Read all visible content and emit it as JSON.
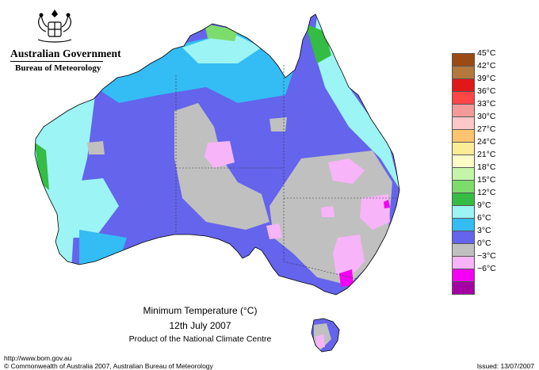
{
  "header": {
    "government": "Australian Government",
    "bureau": "Bureau of Meteorology"
  },
  "map": {
    "title": "Minimum Temperature (°C)",
    "date": "12th July 2007",
    "product": "Product of the National Climate Centre",
    "region": "Australia"
  },
  "legend": {
    "items": [
      {
        "label": "45°C",
        "color": "#9a4a12"
      },
      {
        "label": "42°C",
        "color": "#b5783c"
      },
      {
        "label": "39°C",
        "color": "#e01818"
      },
      {
        "label": "36°C",
        "color": "#ff4646"
      },
      {
        "label": "33°C",
        "color": "#f49a9a"
      },
      {
        "label": "30°C",
        "color": "#fcc8c8"
      },
      {
        "label": "27°C",
        "color": "#fcc46e"
      },
      {
        "label": "24°C",
        "color": "#fcec96"
      },
      {
        "label": "21°C",
        "color": "#fcfcc8"
      },
      {
        "label": "18°C",
        "color": "#c4f4a8"
      },
      {
        "label": "15°C",
        "color": "#7cdc6c"
      },
      {
        "label": "12°C",
        "color": "#34bc44"
      },
      {
        "label": "9°C",
        "color": "#9cf4f4"
      },
      {
        "label": "6°C",
        "color": "#34bcf4"
      },
      {
        "label": "3°C",
        "color": "#6464ec"
      },
      {
        "label": "0°C",
        "color": "#c0c0c0"
      },
      {
        "label": "−3°C",
        "color": "#f8b4f8"
      },
      {
        "label": "−6°C",
        "color": "#f400f4"
      },
      {
        "label": "",
        "color": "#a400a4"
      }
    ]
  },
  "footer": {
    "url": "http://www.bom.gov.au",
    "copyright": "© Commonwealth of Australia 2007, Australian Bureau of Meteorology",
    "issued": "Issued: 13/07/2007"
  }
}
